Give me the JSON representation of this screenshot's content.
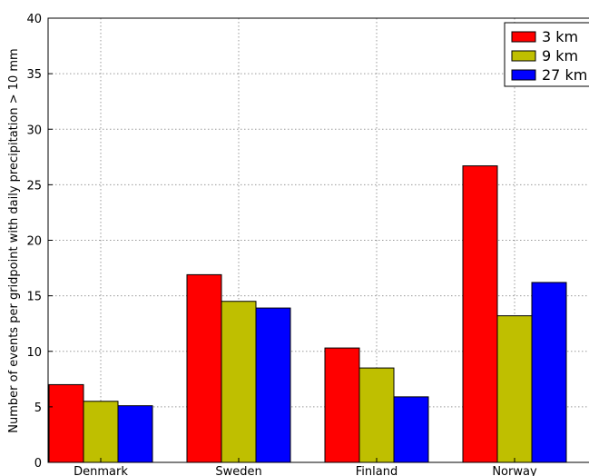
{
  "chart_data": {
    "type": "bar",
    "ylabel": "Number of events per gridpoint with daily precipitation > 10 mm",
    "xlabel": "",
    "ylim": [
      0,
      40
    ],
    "yticks": [
      "0",
      "5",
      "10",
      "15",
      "20",
      "25",
      "30",
      "35",
      "40"
    ],
    "categories": [
      "Denmark",
      "Sweden",
      "Finland",
      "Norway"
    ],
    "grid": true,
    "legend_position": "top-right",
    "series": [
      {
        "name": "3 km",
        "color": "#ff0000",
        "values": [
          7.0,
          16.9,
          10.3,
          26.7
        ]
      },
      {
        "name": "9 km",
        "color": "#bfbf00",
        "values": [
          5.5,
          14.5,
          8.5,
          13.2
        ]
      },
      {
        "name": "27 km",
        "color": "#0000ff",
        "values": [
          5.1,
          13.9,
          5.9,
          16.2
        ]
      }
    ]
  }
}
